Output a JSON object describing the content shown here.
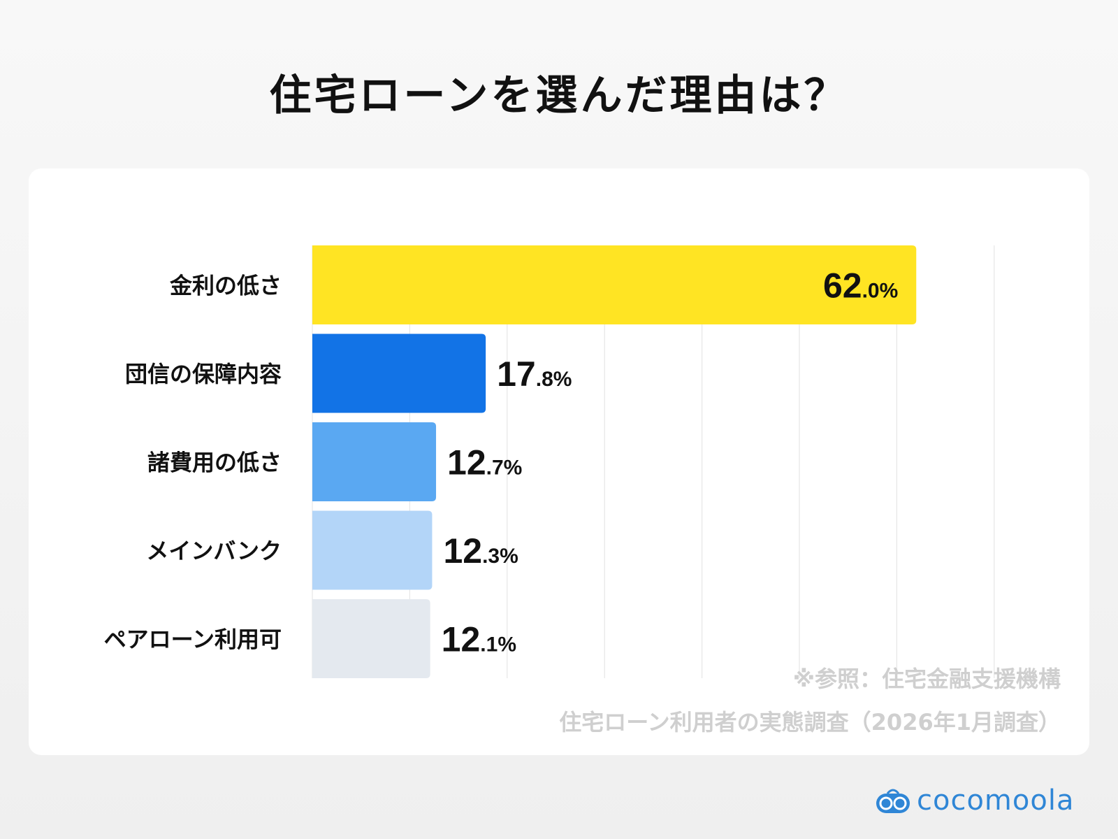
{
  "chart_data": {
    "type": "bar",
    "orientation": "horizontal",
    "title": "住宅ローンを選んだ理由は？",
    "categories": [
      "金利の低さ",
      "団信の保障内容",
      "諸費用の低さ",
      "メインバンク",
      "ペアローン利用可"
    ],
    "values": [
      62.0,
      17.8,
      12.7,
      12.3,
      12.1
    ],
    "value_labels": [
      {
        "int": "62",
        "dec": ".0%"
      },
      {
        "int": "17",
        "dec": ".8%"
      },
      {
        "int": "12",
        "dec": ".7%"
      },
      {
        "int": "12",
        "dec": ".3%"
      },
      {
        "int": "12",
        "dec": ".1%"
      }
    ],
    "colors": [
      "#ffe423",
      "#1273e6",
      "#5aa8f2",
      "#b3d5f8",
      "#e4e9ef"
    ],
    "xlim": [
      0,
      70
    ],
    "grid_step": 10,
    "grid": true,
    "unit": "%"
  },
  "source": {
    "line1": "※参照：住宅金融支援機構",
    "line2": "住宅ローン利用者の実態調査（2026年1月調査）"
  },
  "brand": {
    "name": "cocomoola",
    "color": "#2f86d6"
  }
}
